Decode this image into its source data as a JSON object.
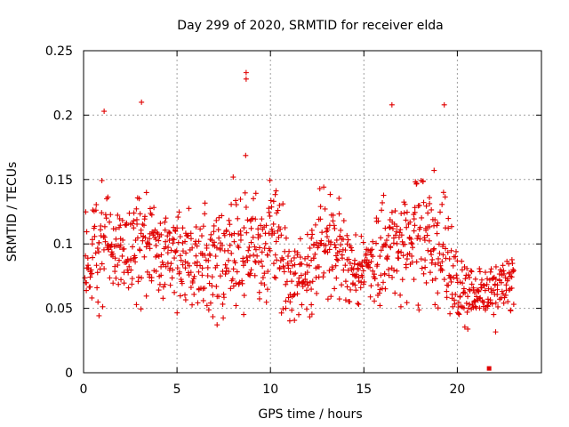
{
  "chart_data": {
    "type": "scatter",
    "title": "Day 299 of 2020, SRMTID for receiver elda",
    "xlabel": "GPS time / hours",
    "ylabel": "SRMTID / TECUs",
    "xlim": [
      0,
      24.5
    ],
    "ylim": [
      0,
      0.25
    ],
    "x_ticks": [
      0,
      5,
      10,
      15,
      20
    ],
    "x_tick_labels": [
      "0",
      "5",
      "10",
      "15",
      "20"
    ],
    "y_ticks": [
      0,
      0.05,
      0.1,
      0.15,
      0.2,
      0.25
    ],
    "y_tick_labels": [
      "0",
      "0.05",
      "0.1",
      "0.15",
      "0.2",
      "0.25"
    ],
    "grid": true,
    "marker": "plus",
    "series": [
      {
        "name": "SRMTID",
        "color": "#e00000",
        "sampling": "approximately 4 points per 5-minute interval from 0 to 23 h (digitized trend; individual points estimated)",
        "trend": {
          "hours": [
            0,
            0.5,
            1,
            1.5,
            2,
            2.5,
            3,
            3.5,
            4,
            5,
            6,
            7,
            8,
            8.7,
            9,
            9.5,
            10,
            10.5,
            11,
            11.5,
            12,
            12.5,
            13,
            13.5,
            14,
            14.5,
            15,
            15.5,
            16,
            16.5,
            17,
            17.5,
            18,
            18.5,
            19,
            19.5,
            20,
            20.5,
            21,
            21.5,
            22,
            22.5,
            23
          ],
          "center": [
            0.085,
            0.09,
            0.1,
            0.1,
            0.09,
            0.1,
            0.105,
            0.1,
            0.095,
            0.085,
            0.085,
            0.09,
            0.09,
            0.1,
            0.1,
            0.095,
            0.105,
            0.095,
            0.07,
            0.07,
            0.08,
            0.095,
            0.1,
            0.1,
            0.085,
            0.075,
            0.075,
            0.08,
            0.09,
            0.1,
            0.1,
            0.095,
            0.105,
            0.1,
            0.1,
            0.09,
            0.065,
            0.06,
            0.06,
            0.06,
            0.065,
            0.07,
            0.07
          ],
          "spread": [
            0.035,
            0.035,
            0.05,
            0.04,
            0.035,
            0.045,
            0.05,
            0.04,
            0.035,
            0.035,
            0.04,
            0.045,
            0.05,
            0.06,
            0.05,
            0.04,
            0.05,
            0.045,
            0.03,
            0.03,
            0.035,
            0.04,
            0.04,
            0.04,
            0.035,
            0.03,
            0.03,
            0.035,
            0.05,
            0.05,
            0.045,
            0.04,
            0.05,
            0.05,
            0.055,
            0.04,
            0.025,
            0.025,
            0.02,
            0.02,
            0.025,
            0.025,
            0.025
          ]
        },
        "extremes": [
          {
            "x": 8.7,
            "y": 0.233
          },
          {
            "x": 8.7,
            "y": 0.228
          },
          {
            "x": 3.1,
            "y": 0.21
          },
          {
            "x": 16.5,
            "y": 0.208
          },
          {
            "x": 19.3,
            "y": 0.208
          },
          {
            "x": 1.1,
            "y": 0.203
          },
          {
            "x": 21.7,
            "y": 0.003
          }
        ]
      }
    ]
  }
}
